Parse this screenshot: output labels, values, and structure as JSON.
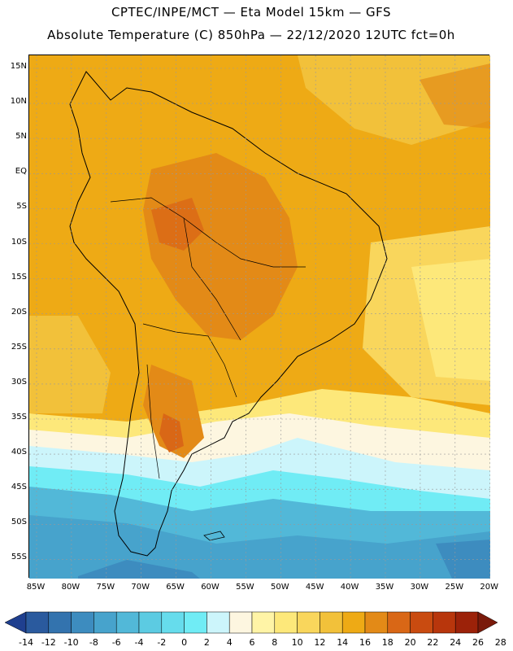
{
  "header": {
    "line1": "CPTEC/INPE/MCT —  Eta Model 15km — GFS",
    "line2": "Absolute Temperature (C) 850hPa — 22/12/2020 12UTC fct=0h"
  },
  "map": {
    "lat_labels": [
      "15N",
      "10N",
      "5N",
      "EQ",
      "5S",
      "10S",
      "15S",
      "20S",
      "25S",
      "30S",
      "35S",
      "40S",
      "45S",
      "50S",
      "55S"
    ],
    "lon_labels": [
      "85W",
      "80W",
      "75W",
      "70W",
      "65W",
      "60W",
      "55W",
      "50W",
      "45W",
      "40W",
      "35W",
      "30W",
      "25W",
      "20W"
    ],
    "region": "South America",
    "gridlines": true
  },
  "colorbar": {
    "labels": [
      "-14",
      "-12",
      "-10",
      "-8",
      "-6",
      "-4",
      "-2",
      "0",
      "2",
      "4",
      "6",
      "8",
      "10",
      "12",
      "14",
      "16",
      "18",
      "20",
      "22",
      "24",
      "26",
      "28"
    ],
    "colors": [
      "#1f3f8f",
      "#2a5a9e",
      "#3373ae",
      "#3d8cbf",
      "#47a3cc",
      "#52b8d8",
      "#5ccbe2",
      "#66dcec",
      "#70ecf5",
      "#ccf5fb",
      "#fdf6e0",
      "#fff4a6",
      "#fde87a",
      "#f9d65c",
      "#f2c13a",
      "#eeaa15",
      "#e38a17",
      "#d96716",
      "#c94b10",
      "#b8360c",
      "#9c2209",
      "#7a1a0a"
    ]
  }
}
